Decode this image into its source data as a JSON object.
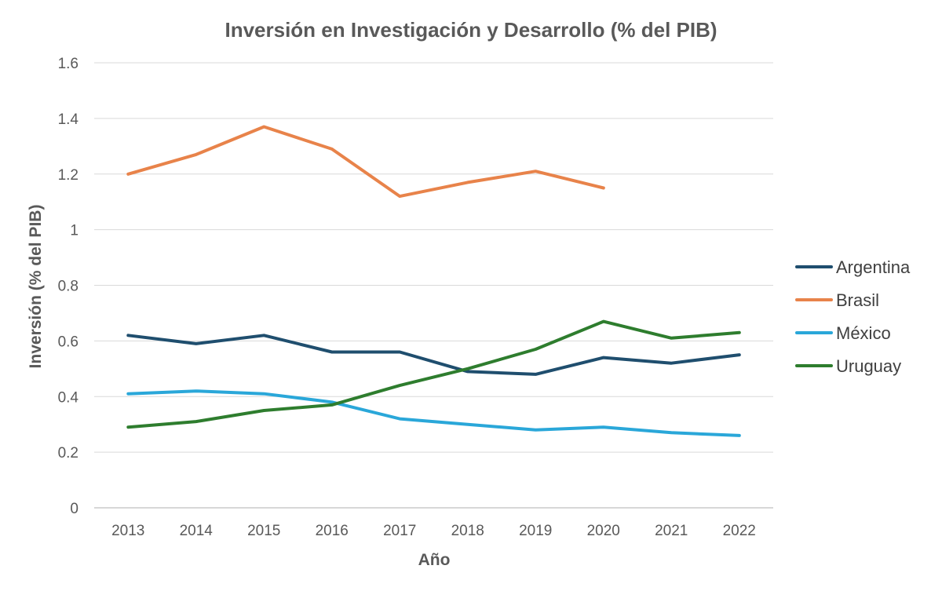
{
  "chart_data": {
    "type": "line",
    "title": "Inversión en Investigación y Desarrollo (% del PIB)",
    "xlabel": "Año",
    "ylabel": "Inversión (% del PIB)",
    "categories": [
      "2013",
      "2014",
      "2015",
      "2016",
      "2017",
      "2018",
      "2019",
      "2020",
      "2021",
      "2022"
    ],
    "ylim": [
      0,
      1.6
    ],
    "yticks": [
      "0",
      "0.2",
      "0.4",
      "0.6",
      "0.8",
      "1",
      "1.2",
      "1.4",
      "1.6"
    ],
    "grid": true,
    "legend_position": "right",
    "series": [
      {
        "name": "Argentina",
        "color": "#1f4e6e",
        "values": [
          0.62,
          0.59,
          0.62,
          0.56,
          0.56,
          0.49,
          0.48,
          0.54,
          0.52,
          0.55
        ]
      },
      {
        "name": "Brasil",
        "color": "#e8834a",
        "values": [
          1.2,
          1.27,
          1.37,
          1.29,
          1.12,
          1.17,
          1.21,
          1.15,
          null,
          null
        ]
      },
      {
        "name": "México",
        "color": "#2aa7d9",
        "values": [
          0.41,
          0.42,
          0.41,
          0.38,
          0.32,
          0.3,
          0.28,
          0.29,
          0.27,
          0.26
        ]
      },
      {
        "name": "Uruguay",
        "color": "#2e7d2e",
        "values": [
          0.29,
          0.31,
          0.35,
          0.37,
          0.44,
          0.5,
          0.57,
          0.67,
          0.61,
          0.63
        ]
      }
    ]
  }
}
